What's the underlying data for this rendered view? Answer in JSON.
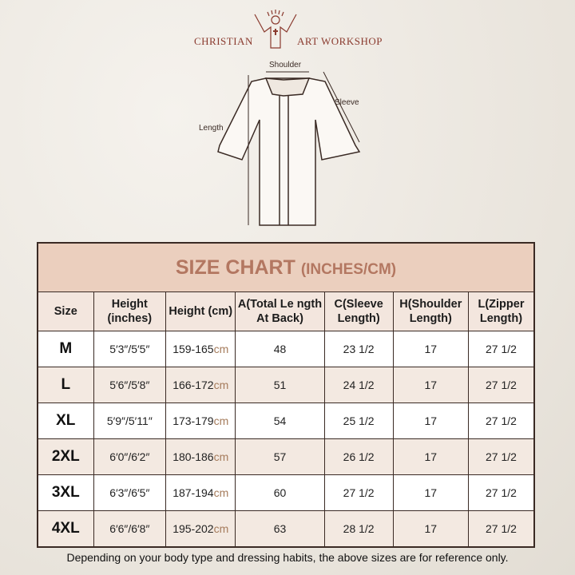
{
  "logo": {
    "left": "CHRISTIAN",
    "right": "ART WORKSHOP"
  },
  "diagram": {
    "shoulder": "Shoulder",
    "sleeve": "Sleeve",
    "length": "Length"
  },
  "table": {
    "title": "SIZE CHART",
    "title_unit": "(INCHES/CM)",
    "headers": [
      "Size",
      "Height (inches)",
      "Height (cm)",
      "A(Total Le ngth At Back)",
      "C(Sleeve Length)",
      "H(Shoulder Length)",
      "L(Zipper Length)"
    ],
    "unit": "cm",
    "rows": [
      {
        "size": "M",
        "in": "5′3″/5′5″",
        "cm": "159-165",
        "a": "48",
        "c": "23 1/2",
        "h": "17",
        "l": "27 1/2"
      },
      {
        "size": "L",
        "in": "5′6″/5′8″",
        "cm": "166-172",
        "a": "51",
        "c": "24 1/2",
        "h": "17",
        "l": "27 1/2"
      },
      {
        "size": "XL",
        "in": "5′9″/5′11″",
        "cm": "173-179",
        "a": "54",
        "c": "25 1/2",
        "h": "17",
        "l": "27 1/2"
      },
      {
        "size": "2XL",
        "in": "6′0″/6′2″",
        "cm": "180-186",
        "a": "57",
        "c": "26 1/2",
        "h": "17",
        "l": "27 1/2"
      },
      {
        "size": "3XL",
        "in": "6′3″/6′5″",
        "cm": "187-194",
        "a": "60",
        "c": "27 1/2",
        "h": "17",
        "l": "27 1/2"
      },
      {
        "size": "4XL",
        "in": "6′6″/6′8″",
        "cm": "195-202",
        "a": "63",
        "c": "28 1/2",
        "h": "17",
        "l": "27 1/2"
      }
    ]
  },
  "footer": "Depending on your body type and dressing habits, the above sizes are for reference only."
}
